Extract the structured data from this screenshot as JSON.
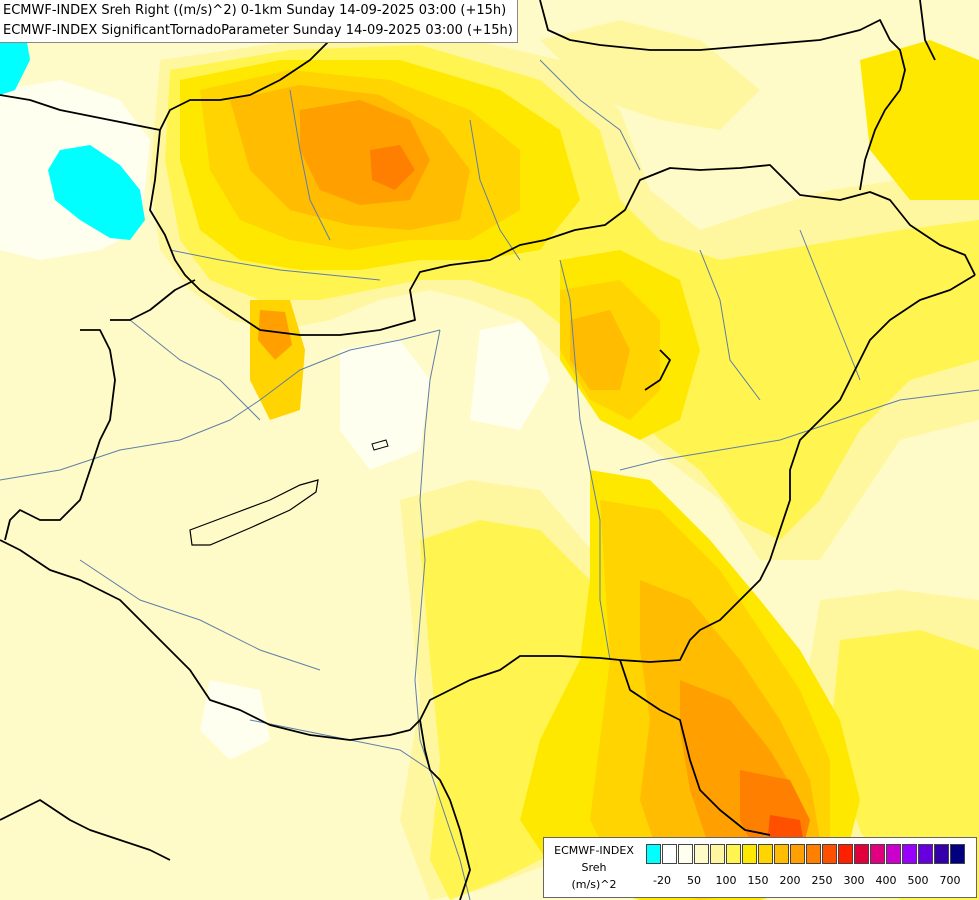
{
  "titles": {
    "line1": "ECMWF-INDEX Sreh Right ((m/s)^2) 0-1km Sunday 14-09-2025 03:00 (+15h)",
    "line2": "ECMWF-INDEX SignificantTornadoParameter Sunday 14-09-2025 03:00 (+15h)"
  },
  "legend": {
    "title": "ECMWF-INDEX",
    "variable": "Sreh",
    "unit": "(m/s)^2",
    "colors": [
      "#00ffff",
      "#ffffff",
      "#fffff0",
      "#fffbc8",
      "#fff7a0",
      "#fff450",
      "#ffe800",
      "#ffd400",
      "#ffbc00",
      "#ffa000",
      "#ff8000",
      "#ff5000",
      "#ff2000",
      "#e0003c",
      "#e00080",
      "#cc00cc",
      "#9900ff",
      "#6600dd",
      "#3300aa",
      "#000080"
    ],
    "ticks": [
      {
        "label": "-20",
        "pos": 0
      },
      {
        "label": "50",
        "pos": 2
      },
      {
        "label": "100",
        "pos": 4
      },
      {
        "label": "150",
        "pos": 6
      },
      {
        "label": "200",
        "pos": 8
      },
      {
        "label": "250",
        "pos": 10
      },
      {
        "label": "300",
        "pos": 12
      },
      {
        "label": "400",
        "pos": 14
      },
      {
        "label": "500",
        "pos": 16
      },
      {
        "label": "700",
        "pos": 18
      }
    ]
  }
}
